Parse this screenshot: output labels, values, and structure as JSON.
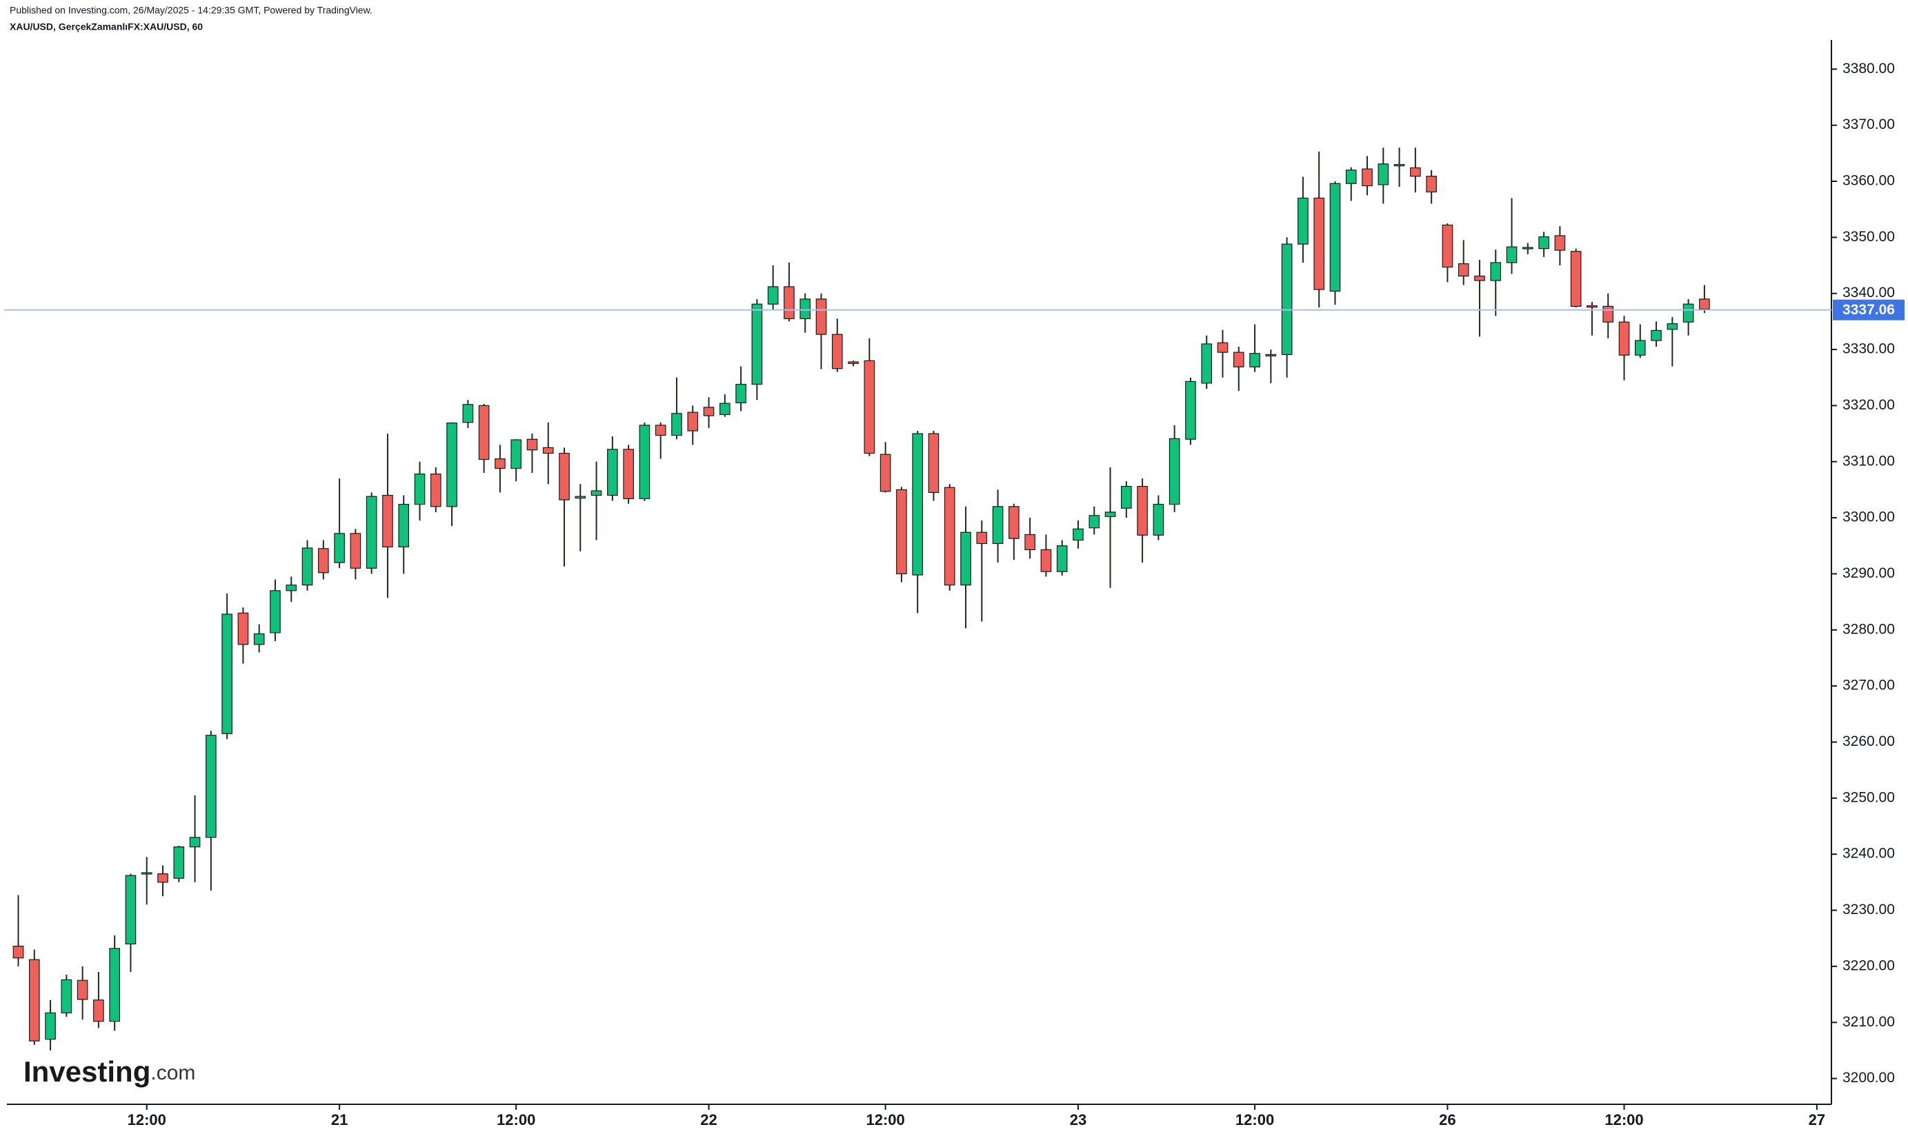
{
  "header": {
    "published": "Published on Investing.com, 26/May/2025 - 14:29:35 GMT, Powered by TradingView.",
    "symbol": "XAU/USD, GerçekZamanlıFX:XAU/USD, 60"
  },
  "logo": {
    "main": "Investing",
    "suffix": ".com"
  },
  "chart_data": {
    "type": "candlestick",
    "categories": [
      null,
      null,
      null,
      null,
      null,
      null,
      null,
      null,
      "12:00",
      null,
      null,
      null,
      null,
      null,
      null,
      null,
      null,
      null,
      null,
      null,
      "21",
      null,
      null,
      null,
      null,
      null,
      null,
      null,
      null,
      null,
      null,
      "12:00",
      null,
      null,
      null,
      null,
      null,
      null,
      null,
      null,
      null,
      null,
      null,
      "22",
      null,
      null,
      null,
      null,
      null,
      null,
      null,
      null,
      null,
      null,
      "12:00",
      null,
      null,
      null,
      null,
      null,
      null,
      null,
      null,
      null,
      null,
      null,
      "23",
      null,
      null,
      null,
      null,
      null,
      null,
      null,
      null,
      null,
      null,
      "12:00",
      null,
      null,
      null,
      null,
      null,
      null,
      null,
      null,
      null,
      null,
      null,
      "26",
      null,
      null,
      null,
      null,
      null,
      null,
      null,
      null,
      null,
      null,
      "12:00",
      null,
      null,
      null,
      null,
      null,
      null,
      null,
      null,
      null,
      null,
      null,
      "27"
    ],
    "open": [
      3223.6,
      3221.2,
      3207,
      3211.7,
      3217.5,
      3214,
      3210.2,
      3224,
      3236.5,
      3236.5,
      3235.7,
      3241.3,
      3243,
      3261.5,
      3283,
      3277.4,
      3279.5,
      3287,
      3288,
      3294.5,
      3292,
      3297.2,
      3291,
      3304,
      3294.8,
      3302.4,
      3307.8,
      3302,
      3317,
      3320,
      3310.5,
      3308.8,
      3314,
      3312.5,
      3311.5,
      3303.5,
      3304,
      3304,
      3312.2,
      3303.4,
      3316.5,
      3314.7,
      3318.8,
      3319.7,
      3318.4,
      3320.5,
      3323.8,
      3338.1,
      3341.2,
      3335.5,
      3339,
      3332.7,
      3327.8,
      3328,
      3311.3,
      3305,
      3289.8,
      3315,
      3305.4,
      3288,
      3297.4,
      3295.4,
      3302,
      3297,
      3294.3,
      3290.4,
      3296,
      3298.2,
      3300.2,
      3301.7,
      3305.6,
      3296.9,
      3302.4,
      3314,
      3324,
      3331.2,
      3329.5,
      3326.9,
      3329,
      3329.1,
      3348.8,
      3357,
      3340.4,
      3359.6,
      3362.2,
      3359.4,
      3363,
      3362.4,
      3360.9,
      3352.2,
      3345.3,
      3343.1,
      3342.3,
      3345.5,
      3348,
      3348,
      3350.3,
      3347.5,
      3337.8,
      3337.7,
      3334.9,
      3329,
      3331.6,
      3333.6,
      3334.9,
      3339,
      null,
      null,
      null,
      null,
      null,
      null,
      null
    ],
    "high": [
      3232.7,
      3223,
      3214,
      3218.5,
      3220,
      3219,
      3225.5,
      3236.5,
      3239.5,
      3238,
      3241.5,
      3250.5,
      3262,
      3286.5,
      3284,
      3281,
      3289,
      3289.5,
      3296,
      3296,
      3307,
      3298,
      3304.5,
      3315,
      3304,
      3310,
      3309,
      3317,
      3321,
      3320.3,
      3313,
      3314,
      3315,
      3317,
      3312.5,
      3306,
      3310,
      3314.5,
      3313,
      3317,
      3317,
      3325,
      3320,
      3321.5,
      3322,
      3327,
      3339,
      3345,
      3345.5,
      3340,
      3340,
      3335.5,
      3328,
      3332,
      3313.5,
      3305.5,
      3315.5,
      3315.5,
      3306,
      3302,
      3299.5,
      3305,
      3302.5,
      3300,
      3297,
      3296,
      3299.5,
      3302,
      3309,
      3306.5,
      3307,
      3304,
      3316.5,
      3325,
      3332.5,
      3333.5,
      3330.5,
      3334.5,
      3330,
      3350,
      3360.8,
      3365.3,
      3360,
      3362.5,
      3364.5,
      3366,
      3366,
      3366,
      3362,
      3352.5,
      3349.5,
      3346,
      3347.8,
      3357,
      3349,
      3351,
      3352,
      3348,
      3338.5,
      3340,
      3336,
      3334.5,
      3335,
      3335.8,
      3339,
      3341.5,
      null,
      null,
      null,
      null,
      null,
      null,
      null
    ],
    "low": [
      3220,
      3206,
      3205,
      3211,
      3210.5,
      3209,
      3208.5,
      3219,
      3231,
      3232.5,
      3235,
      3235,
      3233.5,
      3260.5,
      3274,
      3276,
      3278,
      3285,
      3287,
      3289,
      3291,
      3289,
      3290,
      3285.7,
      3290,
      3299.5,
      3301,
      3298.5,
      3316,
      3308,
      3304.5,
      3306.5,
      3308,
      3306,
      3291.3,
      3294,
      3296,
      3303,
      3302.5,
      3303,
      3310.5,
      3314,
      3313,
      3316,
      3318,
      3319,
      3321,
      3337,
      3335,
      3333,
      3326.5,
      3326,
      3327,
      3311,
      3304.5,
      3288.5,
      3283,
      3303,
      3287,
      3280.3,
      3281.5,
      3292,
      3292.5,
      3292.7,
      3289.5,
      3289.7,
      3294.5,
      3297,
      3287.5,
      3300,
      3292,
      3296,
      3301,
      3313,
      3323,
      3325,
      3322.6,
      3326,
      3324,
      3325,
      3345.5,
      3337.5,
      3338,
      3356.5,
      3357.5,
      3356,
      3359,
      3358,
      3356,
      3342,
      3341.5,
      3332.3,
      3336,
      3343.5,
      3347,
      3346.5,
      3345,
      3337.5,
      3332.5,
      3332,
      3324.5,
      3328.5,
      3330.5,
      3327,
      3332.5,
      3336.5,
      null,
      null,
      null,
      null,
      null,
      null,
      null
    ],
    "close": [
      3221.5,
      3206.7,
      3211.7,
      3217.6,
      3214.1,
      3210.2,
      3223.2,
      3236.2,
      3236.7,
      3235,
      3241.3,
      3243,
      3261.2,
      3282.8,
      3277.4,
      3279.3,
      3287,
      3288,
      3294.6,
      3290.2,
      3297.2,
      3291,
      3303.8,
      3294.8,
      3302.4,
      3307.8,
      3302,
      3316.9,
      3320.2,
      3310.4,
      3308.8,
      3313.9,
      3312.1,
      3311.5,
      3303.2,
      3303.8,
      3304.8,
      3312.2,
      3303.4,
      3316.5,
      3314.7,
      3318.6,
      3315.5,
      3318.2,
      3320.4,
      3323.8,
      3338.1,
      3341.2,
      3335.5,
      3339,
      3332.7,
      3326.6,
      3327.5,
      3311.5,
      3304.7,
      3290,
      3315,
      3304.5,
      3288,
      3297.4,
      3295.4,
      3302,
      3296.3,
      3294.3,
      3290.4,
      3295,
      3298,
      3300.4,
      3301,
      3305.6,
      3296.9,
      3302.4,
      3314.1,
      3324.3,
      3331,
      3329.5,
      3326.9,
      3329.3,
      3329.1,
      3348.8,
      3357,
      3340.7,
      3359.6,
      3362,
      3359.2,
      3363.1,
      3362.8,
      3360.9,
      3358.1,
      3344.7,
      3343.1,
      3342.3,
      3345.5,
      3348.3,
      3348.2,
      3350.1,
      3347.7,
      3337.7,
      3337.6,
      3334.9,
      3329,
      3331.6,
      3333.4,
      3334.6,
      3338.1,
      3337.2,
      null,
      null,
      null,
      null,
      null,
      null,
      null
    ],
    "up_color": "#0fc17a",
    "down_color": "#f0605a",
    "wick_color": "#1e2a1e",
    "last_price": 3337.06,
    "price_line_color": "#a9bdf2",
    "price_label_color": "#3e74e3",
    "ylim": [
      3195.4,
      3385.2
    ],
    "yticks": [
      {
        "value": 3200,
        "label": "3200.00"
      },
      {
        "value": 3210,
        "label": "3210.00"
      },
      {
        "value": 3220,
        "label": "3220.00"
      },
      {
        "value": 3230,
        "label": "3230.00"
      },
      {
        "value": 3240,
        "label": "3240.00"
      },
      {
        "value": 3250,
        "label": "3250.00"
      },
      {
        "value": 3260,
        "label": "3260.00"
      },
      {
        "value": 3270,
        "label": "3270.00"
      },
      {
        "value": 3280,
        "label": "3280.00"
      },
      {
        "value": 3290,
        "label": "3290.00"
      },
      {
        "value": 3300,
        "label": "3300.00"
      },
      {
        "value": 3310,
        "label": "3310.00"
      },
      {
        "value": 3320,
        "label": "3320.00"
      },
      {
        "value": 3330,
        "label": "3330.00"
      },
      {
        "value": 3340,
        "label": "3340.00"
      },
      {
        "value": 3350,
        "label": "3350.00"
      },
      {
        "value": 3360,
        "label": "3360.00"
      },
      {
        "value": 3370,
        "label": "3370.00"
      },
      {
        "value": 3380,
        "label": "3380.00"
      }
    ],
    "grid": false
  }
}
